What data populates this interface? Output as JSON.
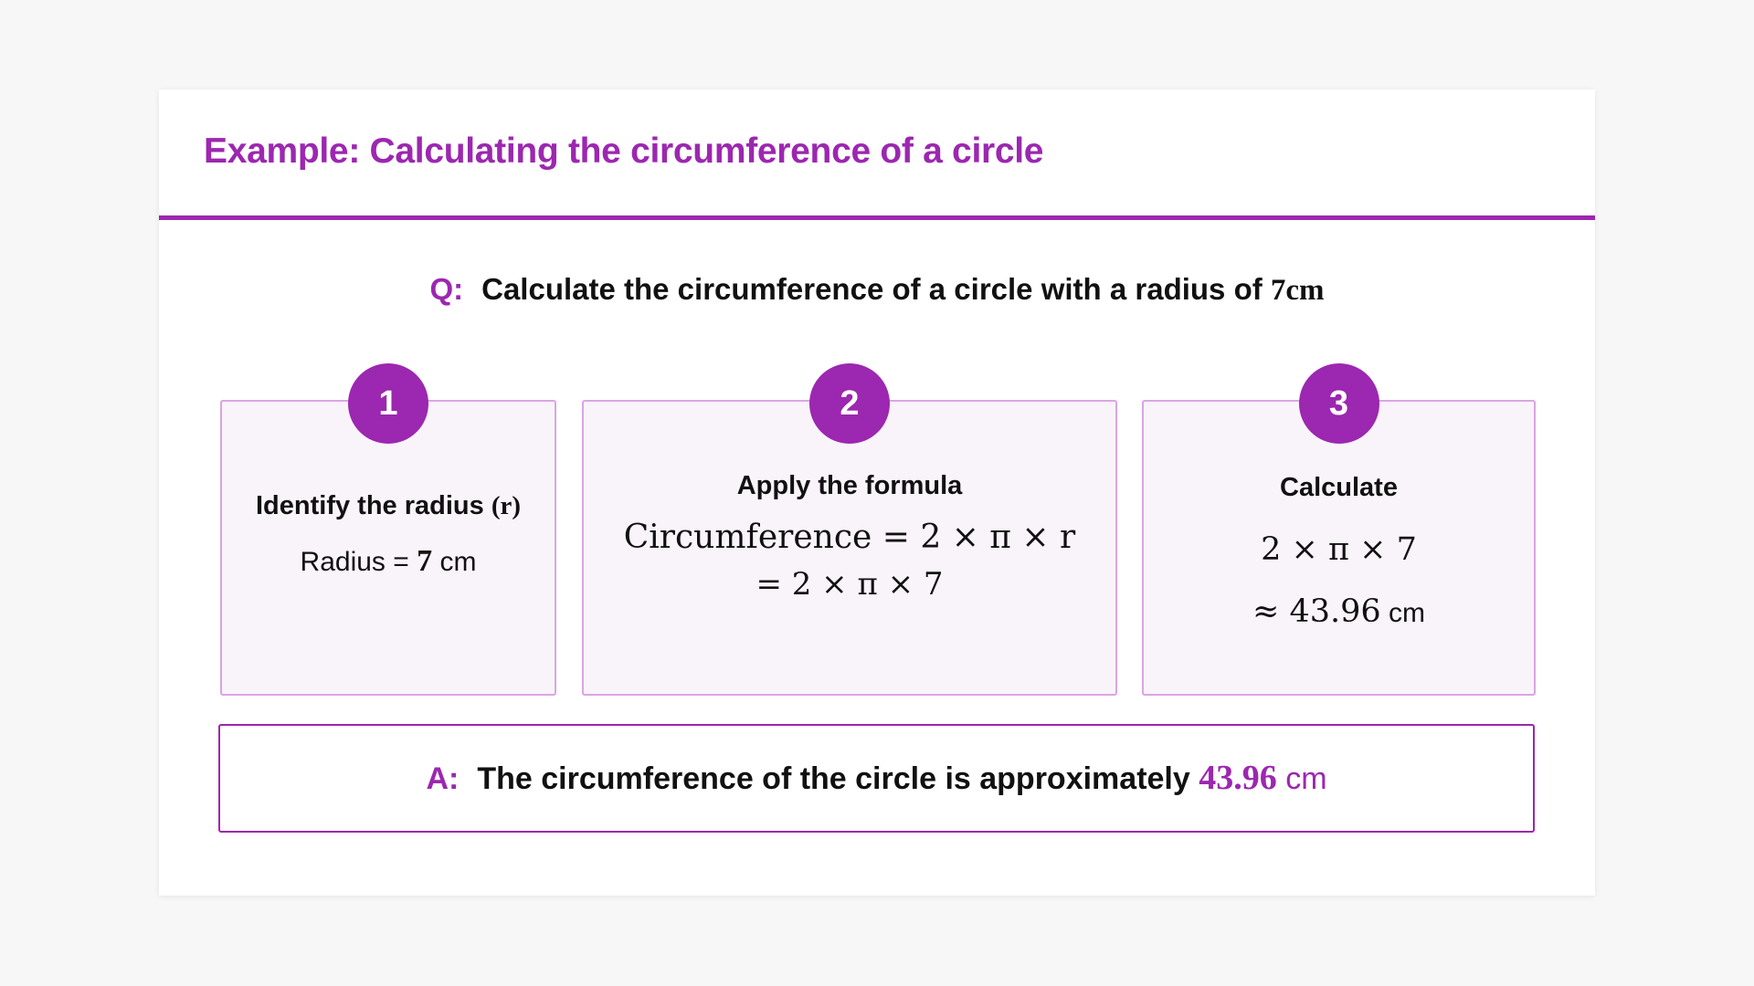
{
  "title": "Example: Calculating the circumference of a circle",
  "question": {
    "label": "Q:",
    "text": "Calculate the circumference of a circle with a radius of",
    "value": "7cm"
  },
  "steps": [
    {
      "number": "1",
      "heading": "Identify the radius",
      "heading_var": "(r)",
      "line_prefix": "Radius =",
      "line_value": "7",
      "line_unit": "cm"
    },
    {
      "number": "2",
      "heading": "Apply the formula",
      "formula_line1": "Circumference = 2 × π × r",
      "formula_line2": "= 2 × π × 7"
    },
    {
      "number": "3",
      "heading": "Calculate",
      "line1": "2 × π × 7",
      "line2_value": "≈ 43.96",
      "line2_unit": "cm"
    }
  ],
  "answer": {
    "label": "A:",
    "text": "The circumference of the circle is approximately",
    "value": "43.96",
    "unit": "cm"
  },
  "colors": {
    "accent": "#9c27b0",
    "box_border": "#dca4e4",
    "box_bg": "#f9f4fa"
  }
}
